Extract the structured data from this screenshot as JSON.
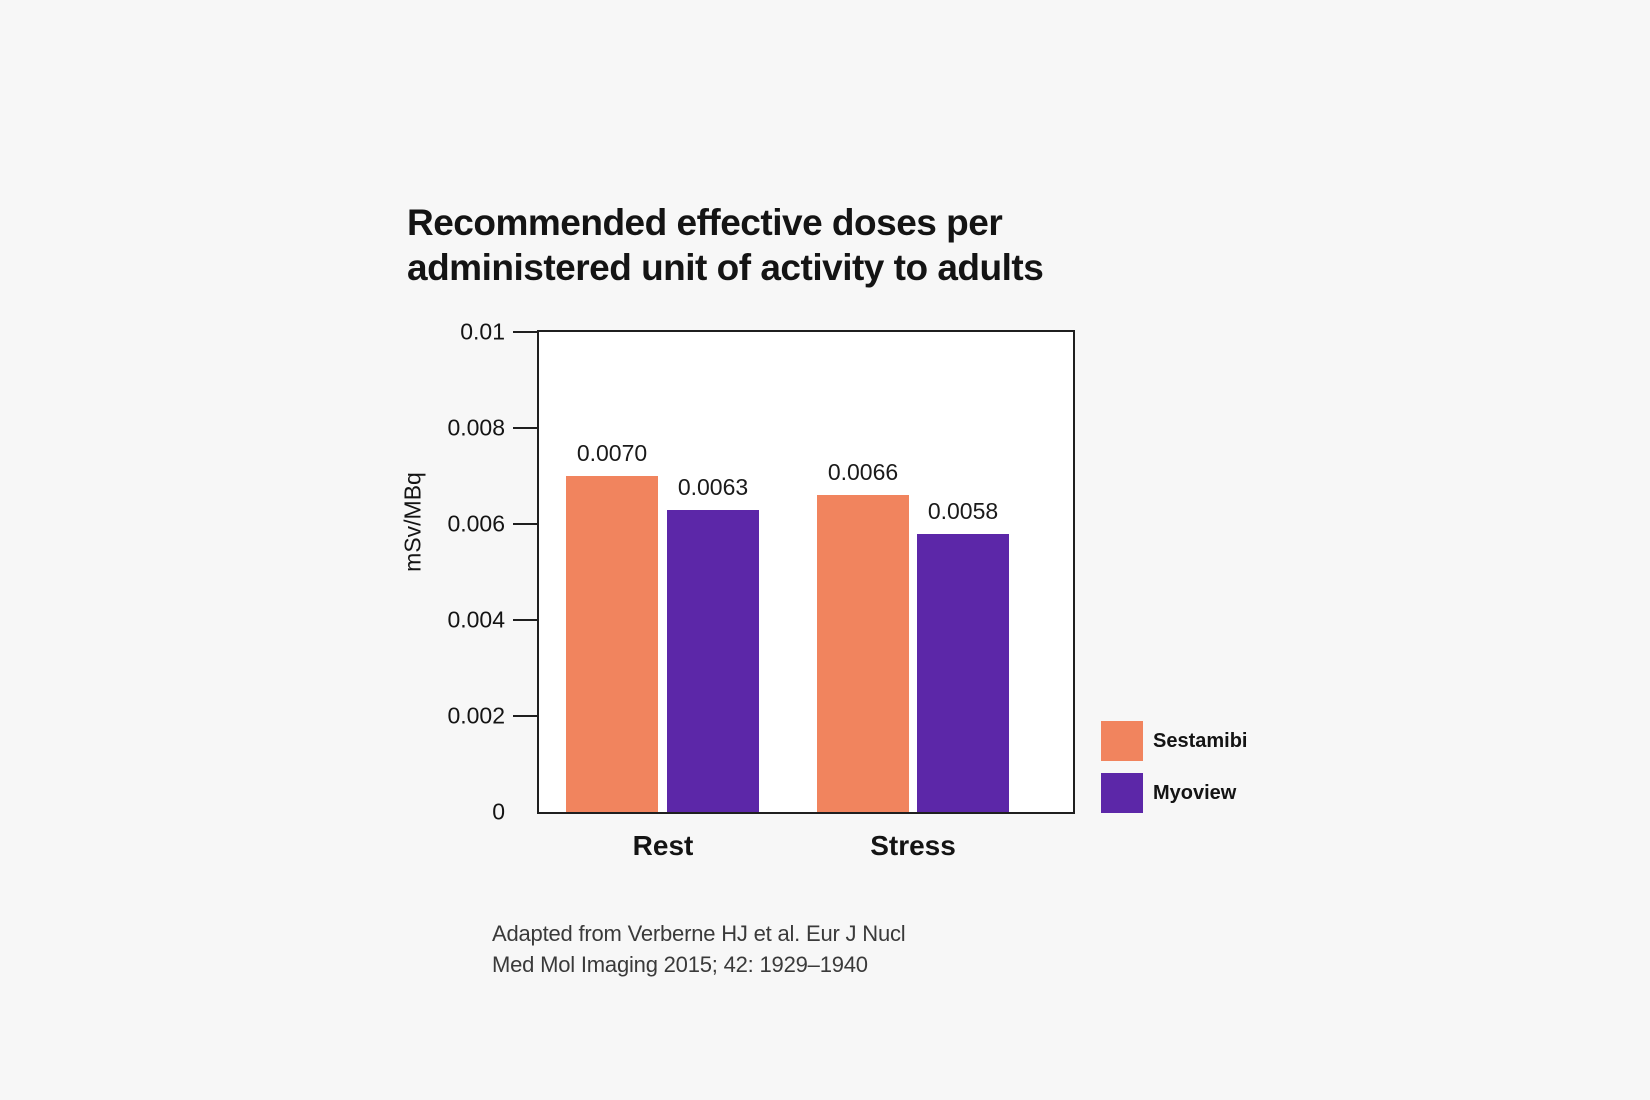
{
  "page": {
    "background_color": "#f7f7f7"
  },
  "title": {
    "line1": "Recommended effective doses per",
    "line2": "administered unit of activity to adults"
  },
  "chart_data": {
    "type": "bar",
    "title": "Recommended effective doses per administered unit of activity to adults",
    "categories": [
      "Rest",
      "Stress"
    ],
    "series": [
      {
        "name": "Sestamibi",
        "color": "#F1845E",
        "values": [
          0.007,
          0.0066
        ],
        "labels": [
          "0.0070",
          "0.0066"
        ]
      },
      {
        "name": "Myoview",
        "color": "#5C27A8",
        "values": [
          0.0063,
          0.0058
        ],
        "labels": [
          "0.0063",
          "0.0058"
        ]
      }
    ],
    "xlabel": "",
    "ylabel": "mSv/MBq",
    "ylim": [
      0,
      0.01
    ],
    "yticks": [
      0.002,
      0.004,
      0.006,
      0.008,
      0.01
    ],
    "ytick_labels": [
      "0.002",
      "0.004",
      "0.006",
      "0.008",
      "0.01"
    ],
    "ytick_zero_label": "0",
    "grid": false,
    "legend_position": "right",
    "plot_background": "#ffffff",
    "axis_color": "#1f1f1f"
  },
  "caption": {
    "line1": "Adapted from Verberne HJ et al. Eur J Nucl",
    "line2": "Med Mol Imaging 2015; 42: 1929–1940"
  }
}
